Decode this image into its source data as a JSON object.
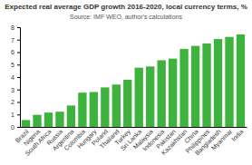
{
  "chart_data": {
    "type": "bar",
    "title": "Expected real average GDP growth 2016-2020, local currency terms, %",
    "subtitle": "Source: IMF WEO, author's calculations",
    "categories": [
      "Brazil",
      "Nigeria",
      "South Africa",
      "Russia",
      "Argentina",
      "Colombia",
      "Hungary",
      "Poland",
      "Thailand",
      "Turkey",
      "Sri Lanka",
      "Malaysia",
      "Indonesia",
      "Pakistan",
      "Kazakhstan",
      "China",
      "Philippines",
      "Bangladesh",
      "Myanmar",
      "India"
    ],
    "values": [
      0.55,
      0.97,
      1.15,
      1.22,
      1.72,
      2.75,
      2.8,
      3.17,
      3.4,
      3.78,
      4.75,
      4.85,
      5.35,
      5.48,
      6.25,
      6.5,
      6.7,
      7.05,
      7.22,
      7.42
    ],
    "color": "#3db33d",
    "ylim": [
      0,
      8
    ],
    "yticks": [
      0,
      1,
      2,
      3,
      4,
      5,
      6,
      7,
      8
    ],
    "grid": false
  }
}
